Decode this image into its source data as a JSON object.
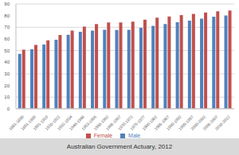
{
  "chart_data": {
    "type": "bar",
    "caption": "Australian Government Actuary, 2012",
    "categories": [
      "1881-1890",
      "1891-1900",
      "1901-1910",
      "1920-1922",
      "1932-1934",
      "1946-1948",
      "1953-1955",
      "1960-1962",
      "1965-1967",
      "1970-1972",
      "1975-1977",
      "1980-1982",
      "1985-1987",
      "1990-1992",
      "1995-1997",
      "2000-2002",
      "2005-2007",
      "2010-2012"
    ],
    "series": [
      {
        "name": "Male",
        "color": "#4f81bd",
        "values": [
          47.2,
          51.1,
          55.2,
          59.2,
          63.5,
          66.1,
          67.1,
          67.9,
          67.6,
          67.8,
          69.6,
          71.2,
          72.7,
          74.3,
          75.7,
          77.4,
          79.0,
          80.1
        ]
      },
      {
        "name": "Female",
        "color": "#c0504d",
        "values": [
          50.8,
          54.8,
          58.8,
          63.3,
          67.1,
          70.6,
          72.8,
          74.2,
          74.2,
          74.8,
          76.6,
          78.3,
          79.2,
          80.4,
          81.4,
          82.6,
          83.7,
          84.3
        ]
      }
    ],
    "ylim": [
      0,
      90
    ],
    "yticks": [
      0,
      10,
      20,
      30,
      40,
      50,
      60,
      70,
      80,
      90
    ],
    "grid": true,
    "legend": "bottom"
  }
}
